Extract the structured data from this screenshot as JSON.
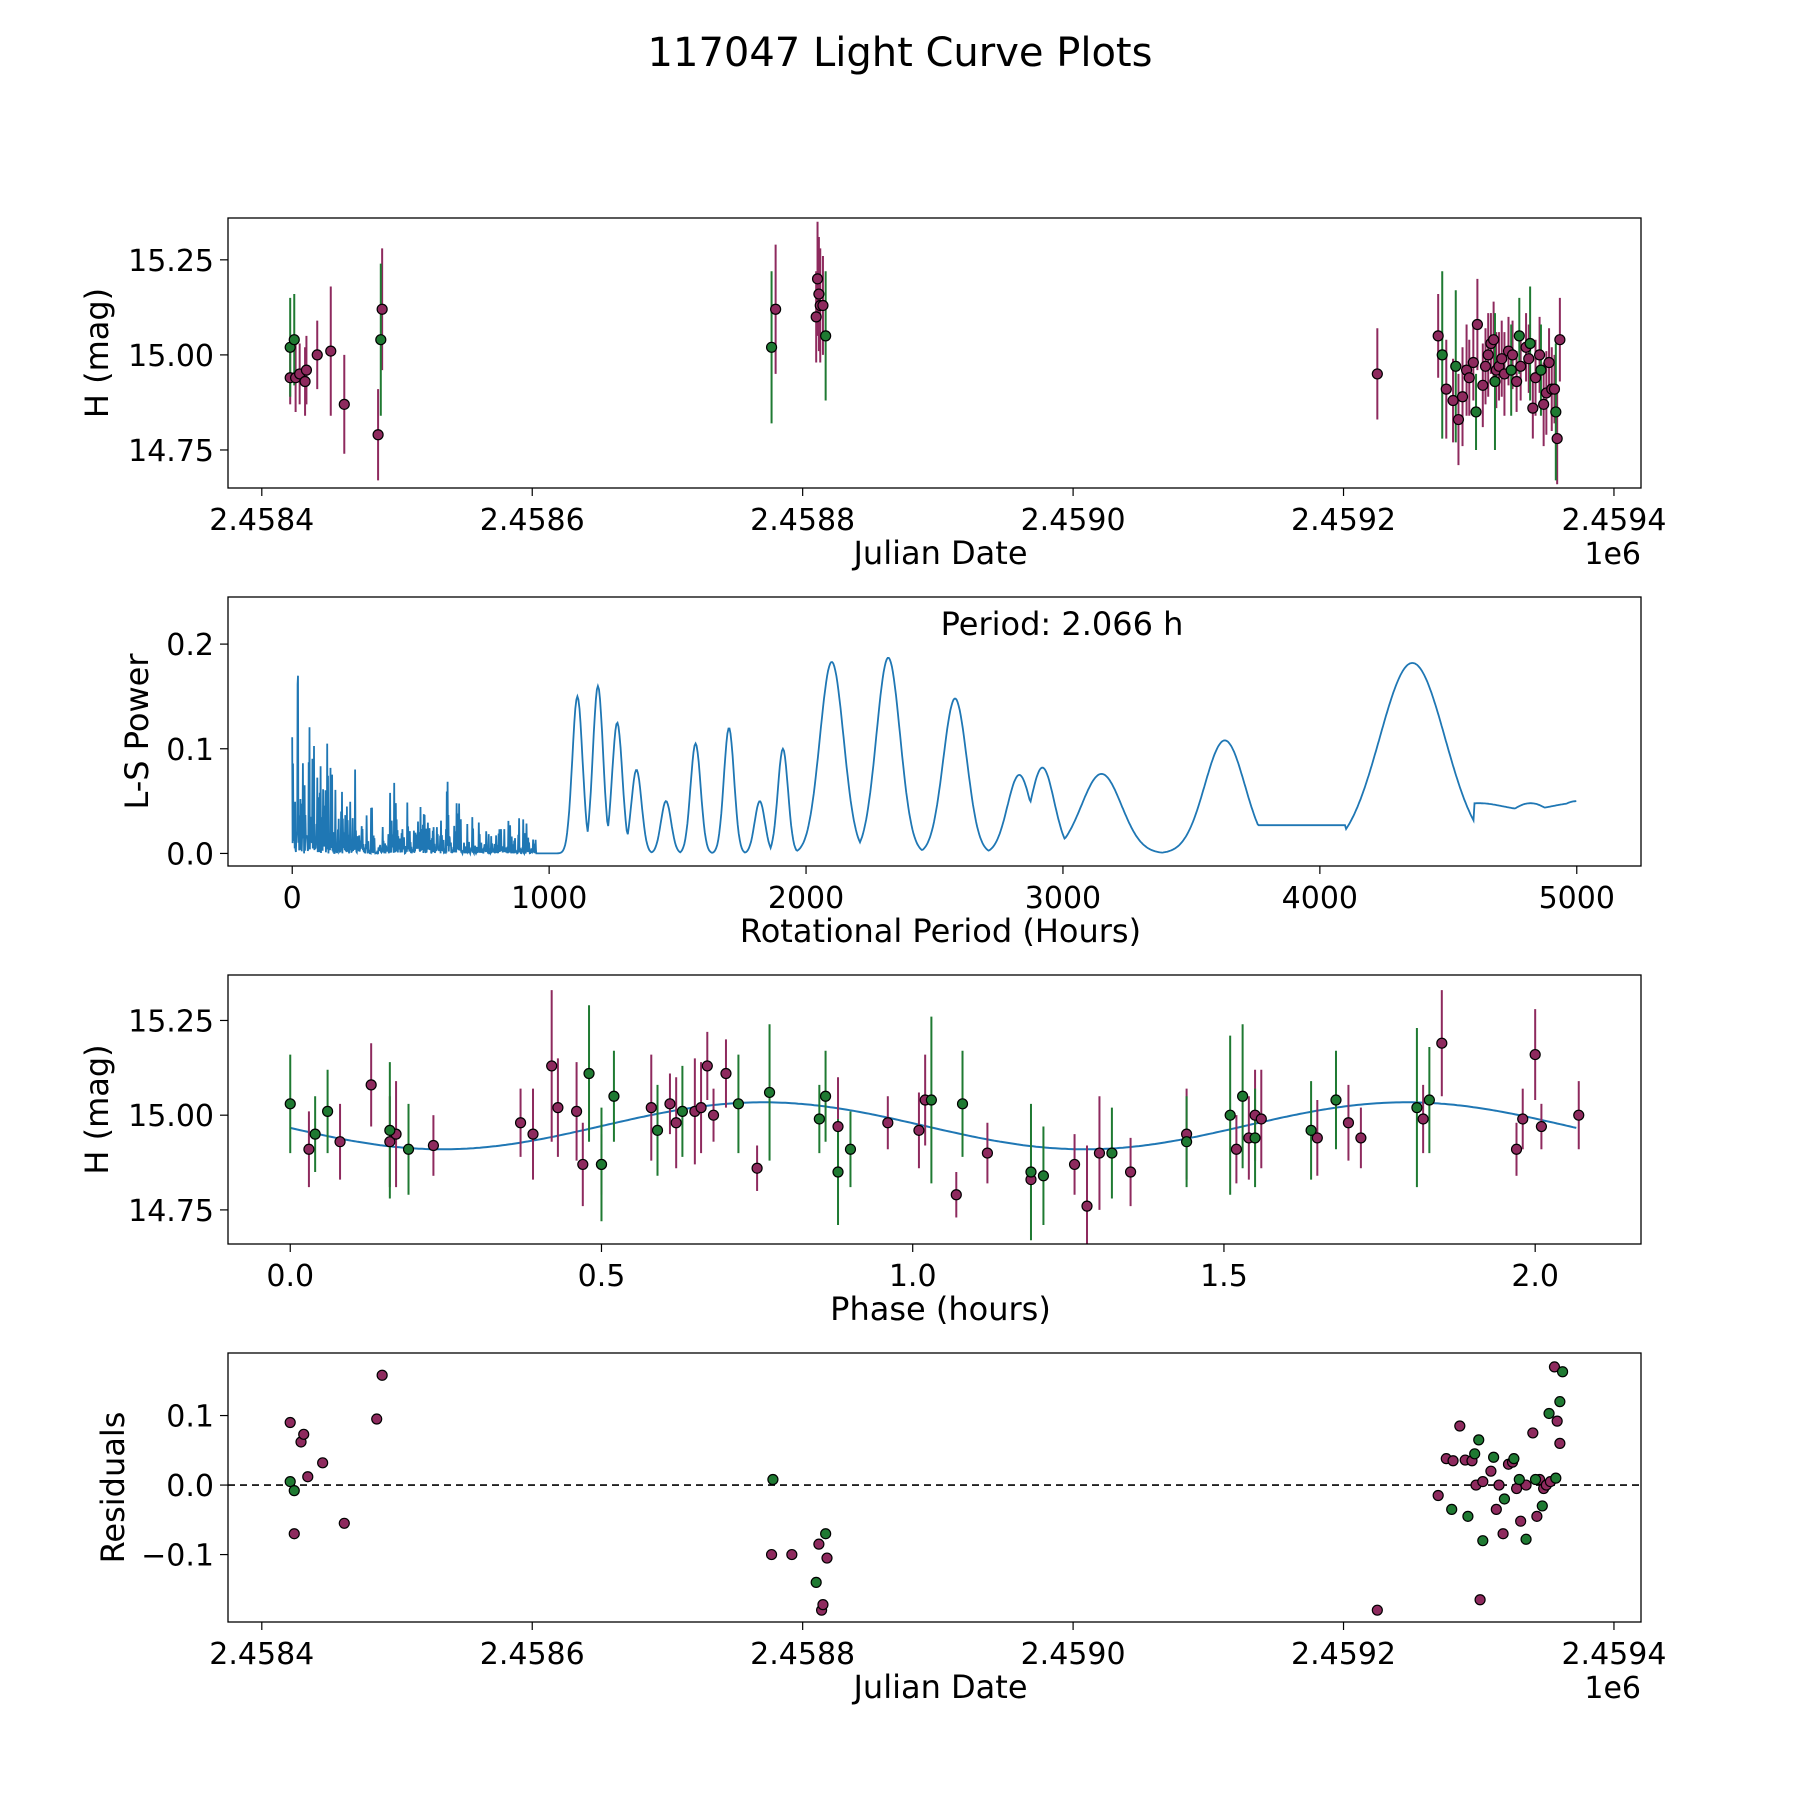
{
  "figure_title": "117047 Light Curve Plots",
  "colors": {
    "magenta": "#8e2a5e",
    "green": "#1f7a32",
    "fit": "#1f77b4",
    "edge": "#000000"
  },
  "chart_data": [
    {
      "id": "lightcurve",
      "type": "scatter",
      "title": "",
      "xlabel": "Julian Date",
      "ylabel": "H (mag)",
      "offset_text": "1e6",
      "xlim": [
        2458375,
        2459420
      ],
      "ylim": [
        14.65,
        15.36
      ],
      "xticks": [
        2458400,
        2458600,
        2458800,
        2459000,
        2459200,
        2459400
      ],
      "xtick_labels": [
        "2.4584",
        "2.4586",
        "2.4588",
        "2.4590",
        "2.4592",
        "2.4594"
      ],
      "yticks": [
        14.75,
        15.0,
        15.25
      ],
      "ytick_labels": [
        "14.75",
        "15.00",
        "15.25"
      ],
      "series": [
        {
          "name": "magenta",
          "color": "magenta",
          "x": [
            2458421,
            2458425,
            2458428,
            2458432,
            2458433,
            2458441,
            2458451,
            2458461,
            2458486,
            2458489,
            2458780,
            2458810,
            2458811,
            2458812,
            2458813,
            2458815,
            2459225,
            2459270,
            2459276,
            2459281,
            2459285,
            2459288,
            2459291,
            2459293,
            2459296,
            2459299,
            2459303,
            2459305,
            2459307,
            2459309,
            2459311,
            2459313,
            2459315,
            2459317,
            2459319,
            2459322,
            2459325,
            2459328,
            2459331,
            2459335,
            2459337,
            2459340,
            2459342,
            2459345,
            2459348,
            2459350,
            2459352,
            2459354,
            2459356,
            2459358,
            2459360
          ],
          "y": [
            14.94,
            14.94,
            14.95,
            14.93,
            14.96,
            15.0,
            15.01,
            14.87,
            14.79,
            15.12,
            15.12,
            15.1,
            15.2,
            15.16,
            15.13,
            15.13,
            14.95,
            15.05,
            14.91,
            14.88,
            14.83,
            14.89,
            14.96,
            14.94,
            14.98,
            15.08,
            14.92,
            14.97,
            15.0,
            15.03,
            15.04,
            14.96,
            14.97,
            14.99,
            14.95,
            15.01,
            15.0,
            14.93,
            14.97,
            15.02,
            14.99,
            14.86,
            14.94,
            15.0,
            14.87,
            14.9,
            14.98,
            14.91,
            14.91,
            14.78,
            15.04
          ],
          "yerr": [
            0.07,
            0.09,
            0.08,
            0.09,
            0.09,
            0.09,
            0.17,
            0.13,
            0.12,
            0.16,
            0.17,
            0.12,
            0.15,
            0.15,
            0.15,
            0.13,
            0.12,
            0.11,
            0.13,
            0.11,
            0.12,
            0.13,
            0.12,
            0.1,
            0.1,
            0.12,
            0.11,
            0.1,
            0.11,
            0.08,
            0.1,
            0.1,
            0.09,
            0.1,
            0.11,
            0.09,
            0.09,
            0.08,
            0.09,
            0.09,
            0.09,
            0.08,
            0.1,
            0.1,
            0.11,
            0.11,
            0.09,
            0.11,
            0.09,
            0.12,
            0.11
          ]
        },
        {
          "name": "green",
          "color": "green",
          "x": [
            2458421,
            2458424,
            2458488,
            2458777,
            2458817,
            2459273,
            2459283,
            2459298,
            2459312,
            2459324,
            2459330,
            2459338,
            2459346,
            2459357
          ],
          "y": [
            15.02,
            15.04,
            15.04,
            15.02,
            15.05,
            15.0,
            14.97,
            14.85,
            14.93,
            14.96,
            15.05,
            15.03,
            14.96,
            14.85
          ],
          "yerr": [
            0.13,
            0.12,
            0.2,
            0.2,
            0.17,
            0.22,
            0.2,
            0.1,
            0.18,
            0.12,
            0.1,
            0.15,
            0.12,
            0.18
          ]
        }
      ]
    },
    {
      "id": "periodogram",
      "type": "line",
      "title": "",
      "annotation": "Period: 2.066 h",
      "xlabel": "Rotational Period (Hours)",
      "ylabel": "L-S Power",
      "xlim": [
        -250,
        5250
      ],
      "ylim": [
        -0.012,
        0.245
      ],
      "xticks": [
        0,
        1000,
        2000,
        3000,
        4000,
        5000
      ],
      "xtick_labels": [
        "0",
        "1000",
        "2000",
        "3000",
        "4000",
        "5000"
      ],
      "yticks": [
        0.0,
        0.1,
        0.2
      ],
      "ytick_labels": [
        "0.0",
        "0.1",
        "0.2"
      ],
      "peaks": [
        {
          "period": 1110,
          "power": 0.15
        },
        {
          "period": 1190,
          "power": 0.16
        },
        {
          "period": 1265,
          "power": 0.125
        },
        {
          "period": 1340,
          "power": 0.08
        },
        {
          "period": 1455,
          "power": 0.05
        },
        {
          "period": 1570,
          "power": 0.105
        },
        {
          "period": 1700,
          "power": 0.12
        },
        {
          "period": 1820,
          "power": 0.05
        },
        {
          "period": 1910,
          "power": 0.1
        },
        {
          "period": 2100,
          "power": 0.183
        },
        {
          "period": 2320,
          "power": 0.187
        },
        {
          "period": 2580,
          "power": 0.148
        },
        {
          "period": 2830,
          "power": 0.075
        },
        {
          "period": 2920,
          "power": 0.082
        },
        {
          "period": 3150,
          "power": 0.076
        },
        {
          "period": 3630,
          "power": 0.108
        },
        {
          "period": 4360,
          "power": 0.182
        },
        {
          "period": 4820,
          "power": 0.048
        },
        {
          "period": 5000,
          "power": 0.05
        }
      ],
      "max_period": 5000
    },
    {
      "id": "phased",
      "type": "scatter",
      "title": "",
      "xlabel": "Phase (hours)",
      "ylabel": "H (mag)",
      "xlim": [
        -0.1,
        2.17
      ],
      "ylim": [
        14.66,
        15.37
      ],
      "xticks": [
        0.0,
        0.5,
        1.0,
        1.5,
        2.0
      ],
      "xtick_labels": [
        "0.0",
        "0.5",
        "1.0",
        "1.5",
        "2.0"
      ],
      "yticks": [
        14.75,
        15.0,
        15.25
      ],
      "ytick_labels": [
        "14.75",
        "15.00",
        "15.25"
      ],
      "fit": {
        "period_hours": 2.066,
        "mean": 14.972,
        "amplitude": 0.062,
        "phase_of_max": 0.76,
        "harmonics": 2
      },
      "series": [
        {
          "name": "magenta",
          "color": "magenta",
          "x": [
            0.03,
            0.08,
            0.13,
            0.16,
            0.17,
            0.23,
            0.37,
            0.39,
            0.42,
            0.43,
            0.46,
            0.47,
            0.5,
            0.58,
            0.61,
            0.62,
            0.65,
            0.66,
            0.67,
            0.68,
            0.7,
            0.75,
            0.88,
            0.96,
            1.01,
            1.02,
            1.07,
            1.12,
            1.19,
            1.26,
            1.28,
            1.3,
            1.35,
            1.44,
            1.52,
            1.54,
            1.55,
            1.56,
            1.65,
            1.7,
            1.72,
            1.82,
            1.85,
            1.97,
            1.98,
            2.0,
            2.01,
            2.07
          ],
          "y": [
            14.91,
            14.93,
            15.08,
            14.93,
            14.95,
            14.92,
            14.98,
            14.95,
            15.13,
            15.02,
            15.01,
            14.87,
            14.87,
            15.02,
            15.03,
            14.98,
            15.01,
            15.02,
            15.13,
            15.0,
            15.11,
            14.86,
            14.97,
            14.98,
            14.96,
            15.04,
            14.79,
            14.9,
            14.83,
            14.87,
            14.76,
            14.9,
            14.85,
            14.95,
            14.91,
            14.94,
            15.0,
            14.99,
            14.94,
            14.98,
            14.94,
            14.99,
            15.19,
            14.91,
            14.99,
            15.16,
            14.97,
            15.0
          ],
          "yerr": [
            0.1,
            0.1,
            0.11,
            0.12,
            0.14,
            0.08,
            0.09,
            0.12,
            0.2,
            0.13,
            0.13,
            0.11,
            0.08,
            0.14,
            0.08,
            0.12,
            0.14,
            0.12,
            0.09,
            0.07,
            0.09,
            0.06,
            0.13,
            0.07,
            0.1,
            0.12,
            0.06,
            0.08,
            0.08,
            0.08,
            0.16,
            0.15,
            0.09,
            0.12,
            0.09,
            0.11,
            0.12,
            0.13,
            0.1,
            0.1,
            0.08,
            0.09,
            0.14,
            0.07,
            0.08,
            0.12,
            0.06,
            0.09
          ]
        },
        {
          "name": "green",
          "color": "green",
          "x": [
            0.0,
            0.04,
            0.06,
            0.16,
            0.19,
            0.48,
            0.5,
            0.52,
            0.59,
            0.63,
            0.72,
            0.77,
            0.85,
            0.86,
            0.88,
            0.9,
            1.03,
            1.08,
            1.19,
            1.21,
            1.32,
            1.44,
            1.51,
            1.53,
            1.55,
            1.64,
            1.68,
            1.81,
            1.83
          ],
          "y": [
            15.03,
            14.95,
            15.01,
            14.96,
            14.91,
            15.11,
            14.87,
            15.05,
            14.96,
            15.01,
            15.03,
            15.06,
            14.99,
            15.05,
            14.85,
            14.91,
            15.04,
            15.03,
            14.85,
            14.84,
            14.9,
            14.93,
            15.0,
            15.05,
            14.94,
            14.96,
            15.04,
            15.02,
            15.04
          ],
          "yerr": [
            0.13,
            0.1,
            0.11,
            0.18,
            0.12,
            0.18,
            0.15,
            0.12,
            0.12,
            0.12,
            0.13,
            0.18,
            0.09,
            0.12,
            0.14,
            0.1,
            0.22,
            0.14,
            0.18,
            0.13,
            0.12,
            0.12,
            0.21,
            0.19,
            0.13,
            0.13,
            0.13,
            0.21,
            0.14
          ]
        }
      ]
    },
    {
      "id": "residuals",
      "type": "scatter",
      "title": "",
      "xlabel": "Julian Date",
      "ylabel": "Residuals",
      "offset_text": "1e6",
      "xlim": [
        2458375,
        2459420
      ],
      "ylim": [
        -0.197,
        0.19
      ],
      "xticks": [
        2458400,
        2458600,
        2458800,
        2459000,
        2459200,
        2459400
      ],
      "xtick_labels": [
        "2.4584",
        "2.4586",
        "2.4588",
        "2.4590",
        "2.4592",
        "2.4594"
      ],
      "yticks": [
        -0.1,
        0.0,
        0.1
      ],
      "ytick_labels": [
        "−0.1",
        "0.0",
        "0.1"
      ],
      "zero_line": 0.0,
      "series": [
        {
          "name": "magenta",
          "color": "magenta",
          "x": [
            2458421,
            2458424,
            2458429,
            2458431,
            2458434,
            2458445,
            2458461,
            2458485,
            2458489,
            2458777,
            2458792,
            2458812,
            2458814,
            2458815,
            2458818,
            2459225,
            2459270,
            2459276,
            2459281,
            2459286,
            2459290,
            2459295,
            2459298,
            2459301,
            2459303,
            2459309,
            2459313,
            2459315,
            2459318,
            2459322,
            2459325,
            2459328,
            2459331,
            2459335,
            2459340,
            2459343,
            2459345,
            2459348,
            2459350,
            2459353,
            2459356,
            2459358,
            2459360
          ],
          "y": [
            0.09,
            -0.07,
            0.062,
            0.073,
            0.012,
            0.032,
            -0.055,
            0.095,
            0.158,
            -0.1,
            -0.1,
            -0.085,
            -0.18,
            -0.172,
            -0.105,
            -0.18,
            -0.015,
            0.038,
            0.035,
            0.085,
            0.036,
            0.035,
            0.0,
            -0.165,
            0.005,
            0.02,
            -0.035,
            0.0,
            -0.07,
            0.03,
            0.033,
            -0.005,
            -0.052,
            0.0,
            0.075,
            -0.045,
            0.008,
            -0.005,
            0.0,
            0.005,
            0.17,
            0.092,
            0.06
          ],
          "yerr": []
        },
        {
          "name": "green",
          "color": "green",
          "x": [
            2458421,
            2458424,
            2458778,
            2458810,
            2458817,
            2459280,
            2459292,
            2459297,
            2459300,
            2459303,
            2459311,
            2459319,
            2459326,
            2459330,
            2459335,
            2459342,
            2459347,
            2459352,
            2459357,
            2459360,
            2459362
          ],
          "y": [
            0.005,
            -0.008,
            0.008,
            -0.14,
            -0.07,
            -0.035,
            -0.045,
            0.045,
            0.065,
            -0.08,
            0.04,
            -0.02,
            0.038,
            0.008,
            -0.078,
            0.008,
            -0.03,
            0.103,
            0.01,
            0.12,
            0.163
          ],
          "yerr": []
        }
      ]
    }
  ]
}
